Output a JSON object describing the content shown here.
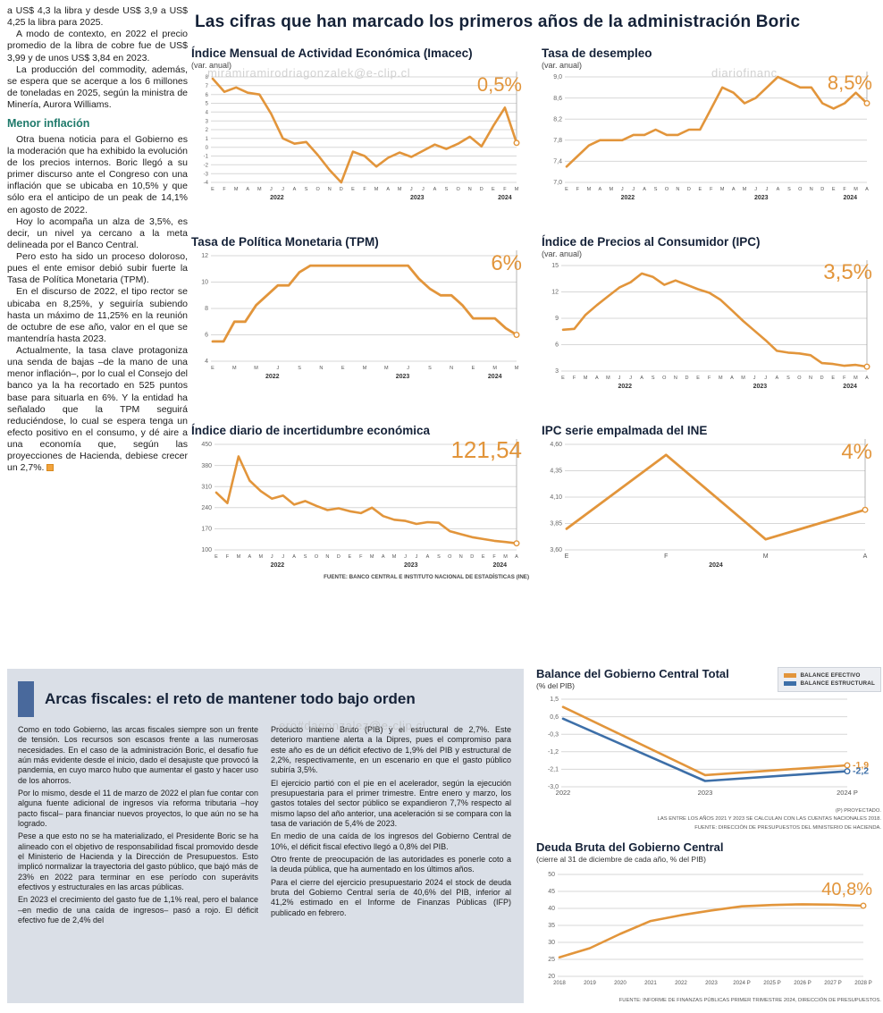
{
  "page": {
    "main_title": "Las cifras que han marcado los primeros años de la administración Boric",
    "watermarks": {
      "top": "miramiramirodriagonzalek@e-clip.cl",
      "top_right": "diariofinanc",
      "bottom": "ero#dagonzalez@e-clip.cl"
    }
  },
  "article": {
    "paragraphs": [
      "a US$ 4,3 la libra y desde US$ 3,9 a US$ 4,25 la libra para 2025.",
      "A modo de contexto, en 2022 el precio promedio de la libra de cobre fue de US$ 3,99 y de unos US$ 3,84 en 2023.",
      "La producción del commodity, además, se espera que se acerque a los 6 millones de toneladas en 2025, según la ministra de Minería, Aurora Williams."
    ],
    "subhead": "Menor inflación",
    "paragraphs2": [
      "Otra buena noticia para el Gobierno es la moderación que ha exhibido la evolución de los precios internos. Boric llegó a su primer discurso ante el Congreso con una inflación que se ubicaba en 10,5% y que sólo era el anticipo de un peak de 14,1% en agosto de 2022.",
      "Hoy lo acompaña un alza de 3,5%, es decir, un nivel ya cercano a la meta delineada por el Banco Central.",
      "Pero esto ha sido un proceso doloroso, pues el ente emisor debió subir fuerte la Tasa de Política Monetaria (TPM).",
      "En el discurso de 2022, el tipo rector se ubicaba en 8,25%, y seguiría subiendo hasta un máximo de 11,25% en la reunión de octubre de ese año, valor en el que se mantendría hasta 2023.",
      "Actualmente, la tasa clave protagoniza una senda de bajas –de la mano de una menor inflación–, por lo cual el Consejo del banco ya la ha recortado en 525 puntos base para situarla en 6%. Y la entidad ha señalado que la TPM seguirá reduciéndose, lo cual se espera tenga un efecto positivo en el consumo, y dé aire a una economía que, según las proyecciones de Hacienda, debiese crecer un 2,7%."
    ]
  },
  "fiscal_panel": {
    "title": "Arcas fiscales: el reto de mantener todo bajo orden",
    "col1": [
      "Como en todo Gobierno, las arcas fiscales siempre son un frente de tensión. Los recursos son escasos frente a las numerosas necesidades. En el caso de la administración Boric, el desafío fue aún más evidente desde el inicio, dado el desajuste que provocó la pandemia, en cuyo marco hubo que aumentar el gasto y hacer uso de los ahorros.",
      "Por lo mismo, desde el 11 de marzo de 2022 el plan fue contar con alguna fuente adicional de ingresos vía reforma tributaria –hoy pacto fiscal– para financiar nuevos proyectos, lo que aún no se ha logrado.",
      "Pese a que esto no se ha materializado, el Presidente Boric se ha alineado con el objetivo de responsabilidad fiscal promovido desde el Ministerio de Hacienda y la Dirección de Presupuestos. Esto implicó normalizar la trayectoria del gasto público, que bajó más de 23% en 2022 para terminar en ese período con superávits efectivos y estructurales en las arcas públicas.",
      "En 2023 el crecimiento del gasto fue de 1,1% real, pero el balance –en medio de una caída de ingresos– pasó a rojo. El déficit efectivo fue de 2,4% del"
    ],
    "col2": [
      "Producto Interno Bruto (PIB) y el estructural de 2,7%. Este deterioro mantiene alerta a la Dipres, pues el compromiso para este año es de un déficit efectivo de 1,9% del PIB y estructural de 2,2%, respectivamente, en un escenario en que el gasto público subiría 3,5%.",
      "El ejercicio partió con el pie en el acelerador, según la ejecución presupuestaria para el primer trimestre. Entre enero y marzo, los gastos totales del sector público se expandieron 7,7% respecto al mismo lapso del año anterior, una aceleración si se compara con la tasa de variación de 5,4% de 2023.",
      "En medio de una caída de los ingresos del Gobierno Central de 10%, el déficit fiscal efectivo llegó a 0,8% del PIB.",
      "Otro frente de preocupación de las autoridades es ponerle coto a la deuda pública, que ha aumentado en los últimos años.",
      "Para el cierre del ejercicio presupuestario 2024 el stock de deuda bruta del Gobierno Central sería de 40,6% del PIB, inferior al 41,2% estimado en el Informe de Finanzas Públicas (IFP) publicado en febrero."
    ]
  },
  "chart_data": [
    {
      "id": "imacec",
      "type": "line",
      "title": "Índice Mensual de Actividad Económica (Imacec)",
      "subtitle": "(var. anual)",
      "highlight": "0,5%",
      "ymin": -4,
      "ymax": 8,
      "ytick_v": [
        8,
        7,
        6,
        5,
        4,
        3,
        2,
        1,
        0,
        -1,
        -2,
        -3,
        -4
      ],
      "ytick_l": [
        "8",
        "7",
        "6",
        "5",
        "4",
        "3",
        "2",
        "1",
        "0",
        "-1",
        "-2",
        "-3",
        "-4"
      ],
      "xlabels": [
        "E",
        "F",
        "M",
        "A",
        "M",
        "J",
        "J",
        "A",
        "S",
        "O",
        "N",
        "D",
        "E",
        "F",
        "M",
        "A",
        "M",
        "J",
        "J",
        "A",
        "S",
        "O",
        "N",
        "D",
        "E",
        "F",
        "M"
      ],
      "years": [
        {
          "label": "2022",
          "at": 5.5
        },
        {
          "label": "2023",
          "at": 17.5
        },
        {
          "label": "2024",
          "at": 25
        }
      ],
      "pointer": true,
      "yfont": 6,
      "margins": {
        "l": 24,
        "r": 14,
        "t": 8,
        "b": 24
      },
      "series": [
        {
          "color": "#E2953B",
          "width": 2.6,
          "end_dot": true,
          "values": [
            7.8,
            6.3,
            6.8,
            6.2,
            6.0,
            3.8,
            1.0,
            0.4,
            0.6,
            -0.9,
            -2.6,
            -4.0,
            -0.5,
            -1.0,
            -2.2,
            -1.2,
            -0.6,
            -1.1,
            -0.4,
            0.3,
            -0.2,
            0.4,
            1.2,
            0.1,
            2.4,
            4.5,
            0.5
          ]
        }
      ]
    },
    {
      "id": "desempleo",
      "type": "line",
      "title": "Tasa de desempleo",
      "subtitle": "(var. anual)",
      "highlight": "8,5%",
      "ymin": 7.0,
      "ymax": 9.0,
      "ytick_v": [
        9.0,
        8.6,
        8.2,
        7.8,
        7.4,
        7.0
      ],
      "ytick_l": [
        "9,0",
        "8,6",
        "8,2",
        "7,8",
        "7,4",
        "7,0"
      ],
      "xlabels": [
        "E",
        "F",
        "M",
        "A",
        "M",
        "J",
        "J",
        "A",
        "S",
        "O",
        "N",
        "D",
        "E",
        "F",
        "M",
        "A",
        "M",
        "J",
        "J",
        "A",
        "S",
        "O",
        "N",
        "D",
        "E",
        "F",
        "M",
        "A"
      ],
      "years": [
        {
          "label": "2022",
          "at": 5.5
        },
        {
          "label": "2023",
          "at": 17.5
        },
        {
          "label": "2024",
          "at": 25.5
        }
      ],
      "pointer": true,
      "yfont": 7,
      "margins": {
        "l": 28,
        "r": 14,
        "t": 8,
        "b": 24
      },
      "series": [
        {
          "color": "#E2953B",
          "width": 2.6,
          "end_dot": true,
          "values": [
            7.3,
            7.5,
            7.7,
            7.8,
            7.8,
            7.8,
            7.9,
            7.9,
            8.0,
            7.9,
            7.9,
            8.0,
            8.0,
            8.4,
            8.8,
            8.7,
            8.5,
            8.6,
            8.8,
            9.0,
            8.9,
            8.8,
            8.8,
            8.5,
            8.4,
            8.5,
            8.7,
            8.5
          ]
        }
      ]
    },
    {
      "id": "tpm",
      "type": "line",
      "title": "Tasa de Política Monetaria (TPM)",
      "highlight": "6%",
      "ymin": 4,
      "ymax": 12,
      "ytick_v": [
        12,
        10,
        8,
        6,
        4
      ],
      "ytick_l": [
        "12",
        "10",
        "8",
        "6",
        "4"
      ],
      "xlabels": [
        "E",
        "",
        "M",
        "",
        "M",
        "",
        "J",
        "",
        "S",
        "",
        "N",
        "",
        "E",
        "",
        "M",
        "",
        "M",
        "",
        "J",
        "",
        "S",
        "",
        "N",
        "",
        "E",
        "",
        "M",
        "",
        "M"
      ],
      "years": [
        {
          "label": "2022",
          "at": 5.5
        },
        {
          "label": "2023",
          "at": 17.5
        },
        {
          "label": "2024",
          "at": 26
        }
      ],
      "pointer": true,
      "yfont": 7,
      "margins": {
        "l": 24,
        "r": 14,
        "t": 8,
        "b": 24
      },
      "series": [
        {
          "color": "#E2953B",
          "width": 2.8,
          "end_dot": true,
          "values": [
            5.5,
            5.5,
            7.0,
            7.0,
            8.25,
            9.0,
            9.75,
            9.75,
            10.75,
            11.25,
            11.25,
            11.25,
            11.25,
            11.25,
            11.25,
            11.25,
            11.25,
            11.25,
            11.25,
            10.25,
            9.5,
            9.0,
            9.0,
            8.25,
            7.25,
            7.25,
            7.25,
            6.5,
            6.0
          ]
        }
      ]
    },
    {
      "id": "ipc",
      "type": "line",
      "title": "Índice de Precios al Consumidor (IPC)",
      "subtitle": "(var. anual)",
      "highlight": "3,5%",
      "ymin": 3,
      "ymax": 15,
      "ytick_v": [
        15,
        12,
        9,
        6,
        3
      ],
      "ytick_l": [
        "15",
        "12",
        "9",
        "6",
        "3"
      ],
      "xlabels": [
        "E",
        "F",
        "M",
        "A",
        "M",
        "J",
        "J",
        "A",
        "S",
        "O",
        "N",
        "D",
        "E",
        "F",
        "M",
        "A",
        "M",
        "J",
        "J",
        "A",
        "S",
        "O",
        "N",
        "D",
        "E",
        "F",
        "M",
        "A"
      ],
      "years": [
        {
          "label": "2022",
          "at": 5.5
        },
        {
          "label": "2023",
          "at": 17.5
        },
        {
          "label": "2024",
          "at": 25.5
        }
      ],
      "pointer": true,
      "yfont": 7,
      "margins": {
        "l": 24,
        "r": 14,
        "t": 8,
        "b": 24
      },
      "series": [
        {
          "color": "#E2953B",
          "width": 2.6,
          "end_dot": true,
          "values": [
            7.7,
            7.8,
            9.4,
            10.5,
            11.5,
            12.5,
            13.1,
            14.1,
            13.7,
            12.8,
            13.3,
            12.8,
            12.3,
            11.9,
            11.1,
            9.9,
            8.7,
            7.6,
            6.5,
            5.3,
            5.1,
            5.0,
            4.8,
            3.9,
            3.8,
            3.6,
            3.7,
            3.5
          ]
        }
      ]
    },
    {
      "id": "incertidumbre",
      "type": "line",
      "title": "Índice diario de incertidumbre económica",
      "highlight": "121,54",
      "source": "FUENTE: BANCO CENTRAL E INSTITUTO NACIONAL DE ESTADÍSTICAS (INE)",
      "ymin": 100,
      "ymax": 450,
      "ytick_v": [
        450,
        380,
        310,
        240,
        170,
        100
      ],
      "ytick_l": [
        "450",
        "380",
        "310",
        "240",
        "170",
        "100"
      ],
      "xlabels": [
        "E",
        "F",
        "M",
        "A",
        "M",
        "J",
        "J",
        "A",
        "S",
        "O",
        "N",
        "D",
        "E",
        "F",
        "M",
        "A",
        "M",
        "J",
        "J",
        "A",
        "S",
        "O",
        "N",
        "D",
        "E",
        "F",
        "M",
        "A"
      ],
      "years": [
        {
          "label": "2022",
          "at": 5.5
        },
        {
          "label": "2023",
          "at": 17.5
        },
        {
          "label": "2024",
          "at": 25.5
        }
      ],
      "pointer": true,
      "yfont": 7,
      "margins": {
        "l": 28,
        "r": 14,
        "t": 8,
        "b": 24
      },
      "series": [
        {
          "color": "#E2953B",
          "width": 2.6,
          "end_dot": true,
          "values": [
            290,
            255,
            410,
            330,
            295,
            270,
            280,
            250,
            262,
            246,
            232,
            238,
            228,
            222,
            240,
            212,
            200,
            196,
            186,
            192,
            190,
            162,
            152,
            142,
            136,
            130,
            126,
            121.54
          ]
        }
      ]
    },
    {
      "id": "empalmada",
      "type": "line",
      "title": "IPC serie empalmada del INE",
      "highlight": "4%",
      "ymin": 3.6,
      "ymax": 4.6,
      "ytick_v": [
        4.6,
        4.35,
        4.1,
        3.85,
        3.6
      ],
      "ytick_l": [
        "4,60",
        "4,35",
        "4,10",
        "3,85",
        "3,60"
      ],
      "xlabels": [
        "E",
        "F",
        "M",
        "A"
      ],
      "years": [
        {
          "label": "2024",
          "at": 1.5
        }
      ],
      "pointer": true,
      "yfont": 7,
      "xfont": 7,
      "margins": {
        "l": 28,
        "r": 16,
        "t": 8,
        "b": 24
      },
      "series": [
        {
          "color": "#E2953B",
          "width": 2.8,
          "end_dot": true,
          "values": [
            3.8,
            4.5,
            3.7,
            3.98
          ]
        }
      ]
    },
    {
      "id": "balance",
      "type": "line",
      "title": "Balance del Gobierno Central Total",
      "subtitle": "(% del PIB)",
      "ymin": -3.0,
      "ymax": 1.5,
      "ytick_v": [
        1.5,
        0.6,
        -0.3,
        -1.2,
        -2.1,
        -3.0
      ],
      "ytick_l": [
        "1,5",
        "0,6",
        "-0,3",
        "-1,2",
        "-2,1",
        "-3,0"
      ],
      "xlabels": [
        "2022",
        "2023",
        "2024 P"
      ],
      "years": [],
      "pointer": false,
      "yfont": 7,
      "xfont": 7.5,
      "margins": {
        "l": 30,
        "r": 38,
        "t": 8,
        "b": 16
      },
      "footnotes": [
        "(P) PROYECTADO.",
        "LAS ENTRE LOS AÑOS 2021 Y 2023 SE CALCULAN CON LAS CUENTAS NACIONALES 2018.",
        "FUENTE: DIRECCIÓN DE PRESUPUESTOS DEL MINISTERIO DE HACIENDA."
      ],
      "series": [
        {
          "name": "BALANCE EFECTIVO",
          "color": "#E2953B",
          "width": 2.6,
          "end_dot": true,
          "end_label": "-1,9",
          "values": [
            1.1,
            -2.4,
            -1.9
          ]
        },
        {
          "name": "BALANCE ESTRUCTURAL",
          "color": "#3D6FA8",
          "width": 2.6,
          "end_dot": true,
          "end_label": "-2,2",
          "values": [
            0.5,
            -2.7,
            -2.2
          ]
        }
      ]
    },
    {
      "id": "deuda",
      "type": "line",
      "title": "Deuda Bruta del Gobierno Central",
      "subtitle": "(cierre al 31 de diciembre de cada año, % del PIB)",
      "highlight": "40,8%",
      "source": "FUENTE: INFORME DE FINANZAS PÚBLICAS PRIMER TRIMESTRE 2024, DIRECCIÓN DE PRESUPUESTOS.",
      "ymin": 20,
      "ymax": 50,
      "ytick_v": [
        50,
        45,
        40,
        35,
        30,
        25,
        20
      ],
      "ytick_l": [
        "50",
        "45",
        "40",
        "35",
        "30",
        "25",
        "20"
      ],
      "xlabels": [
        "2018",
        "2019",
        "2020",
        "2021",
        "2022",
        "2023",
        "2024 P",
        "2025 P",
        "2026 P",
        "2027 P",
        "2028 P"
      ],
      "years": [],
      "pointer": false,
      "yfont": 7,
      "xfont": 6.2,
      "margins": {
        "l": 26,
        "r": 20,
        "t": 12,
        "b": 16
      },
      "series": [
        {
          "color": "#E2953B",
          "width": 2.6,
          "end_dot": true,
          "values": [
            25.6,
            28.3,
            32.5,
            36.3,
            38.0,
            39.4,
            40.6,
            41.0,
            41.2,
            41.1,
            40.8
          ]
        }
      ]
    }
  ]
}
